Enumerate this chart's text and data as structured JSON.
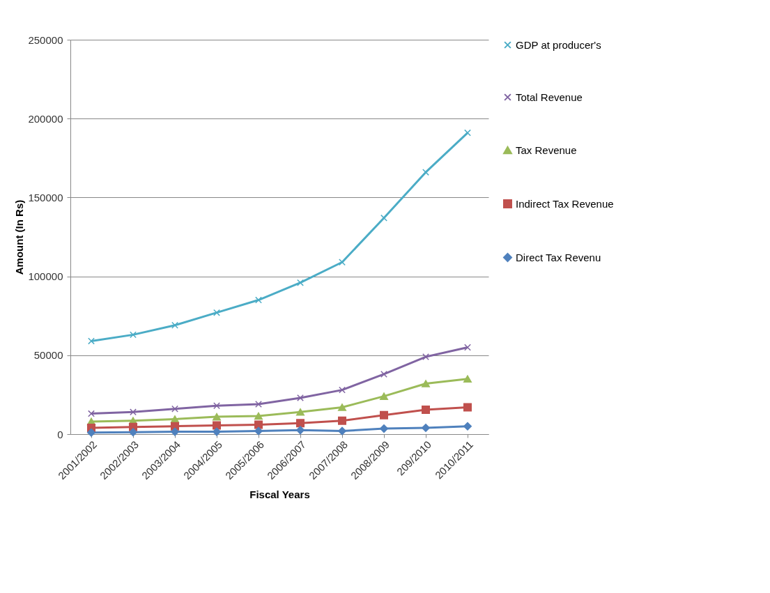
{
  "chart_data": {
    "type": "line",
    "xlabel": "Fiscal Years",
    "ylabel": "Amount (In Rs)",
    "categories": [
      "2001/2002",
      "2002/2003",
      "2003/2004",
      "2004/2005",
      "2005/2006",
      "2006/2007",
      "2007/2008",
      "2008/2009",
      "209/2010",
      "2010/2011"
    ],
    "series": [
      {
        "name": "GDP at producer's",
        "color": "#4bacc6",
        "marker": "cross",
        "values": [
          59000,
          63000,
          69000,
          77000,
          85000,
          96000,
          109000,
          137000,
          166000,
          191000
        ]
      },
      {
        "name": "Total Revenue",
        "color": "#8064a2",
        "marker": "cross",
        "values": [
          13000,
          14000,
          16000,
          18000,
          19000,
          23000,
          28000,
          38000,
          49000,
          55000
        ]
      },
      {
        "name": "Tax Revenue",
        "color": "#9bbb59",
        "marker": "triangle",
        "values": [
          8000,
          8500,
          9500,
          11000,
          11500,
          14000,
          17000,
          24000,
          32000,
          35000
        ]
      },
      {
        "name": "Indirect Tax Revenue",
        "color": "#c0504d",
        "marker": "square",
        "values": [
          4000,
          4500,
          5000,
          5500,
          6000,
          7000,
          8500,
          12000,
          15500,
          17000
        ]
      },
      {
        "name": "Direct Tax Revenu",
        "color": "#4f81bd",
        "marker": "diamond",
        "values": [
          1000,
          1200,
          1500,
          1500,
          2000,
          2500,
          2000,
          3500,
          4000,
          5000
        ]
      }
    ],
    "ylim": [
      0,
      250000
    ],
    "yticks": [
      0,
      50000,
      100000,
      150000,
      200000,
      250000
    ],
    "grid": "y",
    "legend": "right"
  }
}
